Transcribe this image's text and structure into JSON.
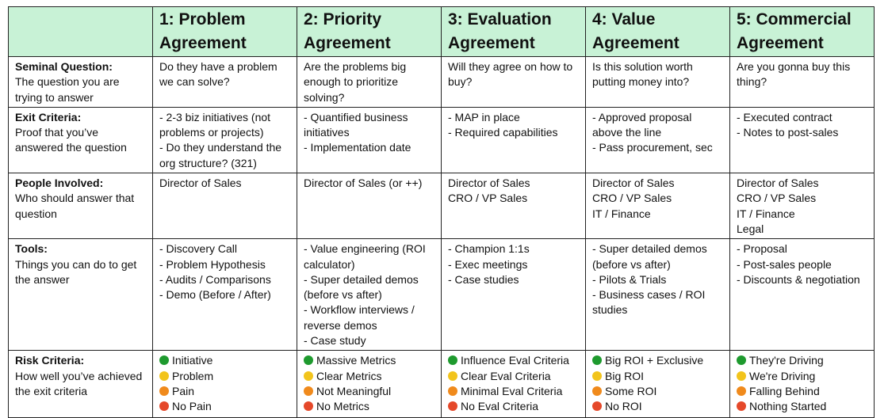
{
  "header": {
    "columns": [
      "1: Problem Agreement",
      "2: Priority Agreement",
      "3: Evaluation Agreement",
      "4: Value Agreement",
      "5: Commercial Agreement"
    ]
  },
  "rows": [
    {
      "label": "Seminal Question:",
      "description": "The question you are trying to answer",
      "cells": [
        [
          "Do they have a problem we can solve?"
        ],
        [
          "Are the problems big enough to prioritize solving?"
        ],
        [
          "Will they agree on how to buy?"
        ],
        [
          "Is this solution worth putting money into?"
        ],
        [
          "Are you gonna buy this thing?"
        ]
      ]
    },
    {
      "label": "Exit Criteria:",
      "description": "Proof that you’ve answered the question",
      "cells": [
        [
          "- 2-3 biz initiatives (not problems or projects)",
          "- Do they understand the org structure? (321)"
        ],
        [
          "- Quantified business initiatives",
          "- Implementation date"
        ],
        [
          "- MAP in place",
          "- Required capabilities"
        ],
        [
          "- Approved proposal above the line",
          "- Pass procurement, sec"
        ],
        [
          "- Executed contract",
          "- Notes to post-sales"
        ]
      ]
    },
    {
      "label": "People Involved:",
      "description": "Who should answer that question",
      "cells": [
        [
          "Director of Sales"
        ],
        [
          "Director of Sales (or ++)"
        ],
        [
          "Director of Sales",
          "CRO / VP Sales"
        ],
        [
          "Director of Sales",
          "CRO / VP Sales",
          "IT / Finance"
        ],
        [
          "Director of Sales",
          "CRO / VP Sales",
          "IT / Finance",
          "Legal"
        ]
      ]
    },
    {
      "label": "Tools:",
      "description": "Things you can do to get the answer",
      "cells": [
        [
          "- Discovery Call",
          "- Problem Hypothesis",
          "- Audits / Comparisons",
          "- Demo (Before / After)"
        ],
        [
          "- Value engineering (ROI calculator)",
          "- Super detailed demos (before vs after)",
          "- Workflow interviews / reverse demos",
          "- Case study"
        ],
        [
          "- Champion 1:1s",
          "- Exec meetings",
          "- Case studies"
        ],
        [
          "- Super detailed demos (before vs after)",
          "- Pilots & Trials",
          "- Business cases / ROI studies"
        ],
        [
          "- Proposal",
          "- Post-sales people",
          "- Discounts & negotiation"
        ]
      ]
    },
    {
      "label": "Risk Criteria:",
      "description": "How well you’ve achieved the exit criteria",
      "cells": [
        [
          "Initiative",
          "Problem",
          "Pain",
          "No Pain"
        ],
        [
          "Massive Metrics",
          "Clear Metrics",
          "Not Meaningful",
          "No Metrics"
        ],
        [
          "Influence Eval Criteria",
          "Clear Eval Criteria",
          "Minimal Eval Criteria",
          "No Eval Criteria"
        ],
        [
          "Big ROI + Exclusive",
          "Big ROI",
          "Some ROI",
          "No ROI"
        ],
        [
          "They're Driving",
          "We're Driving",
          "Falling Behind",
          "Nothing Started"
        ]
      ]
    }
  ]
}
